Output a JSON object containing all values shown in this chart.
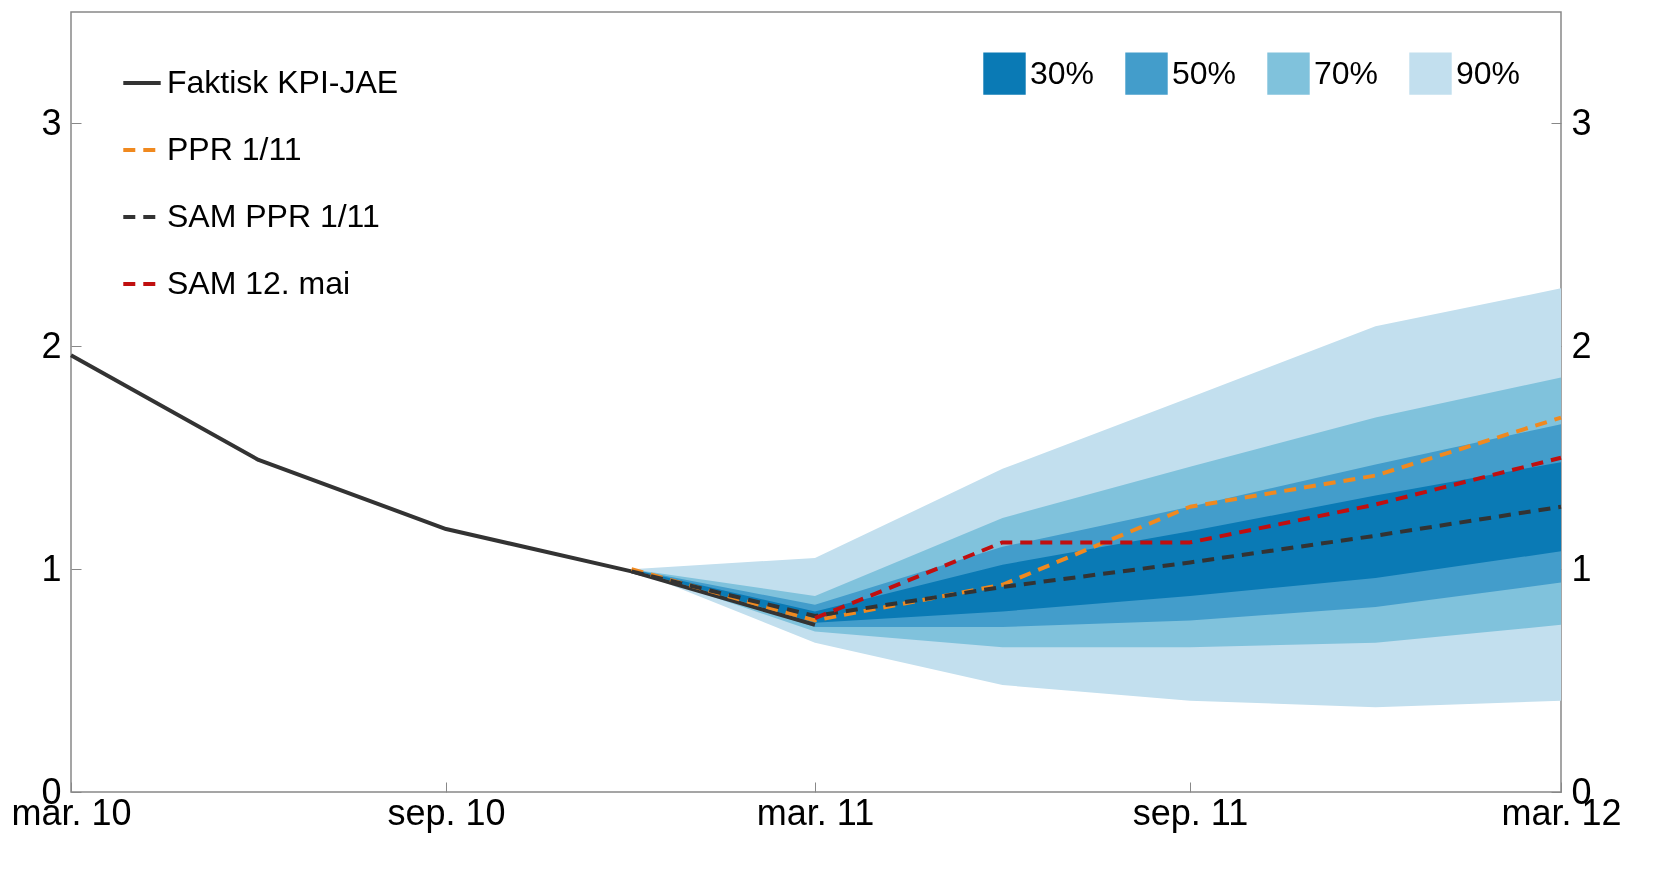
{
  "chart_data": {
    "type": "line",
    "xlim": [
      "2010-03",
      "2012-03"
    ],
    "xticks": [
      {
        "value": "2010-03",
        "label": "mar. 10"
      },
      {
        "value": "2010-09",
        "label": "sep. 10"
      },
      {
        "value": "2011-03",
        "label": "mar. 11"
      },
      {
        "value": "2011-09",
        "label": "sep. 11"
      },
      {
        "value": "2012-03",
        "label": "mar. 12"
      }
    ],
    "ylim": [
      0,
      3.5
    ],
    "yticks": [
      0,
      1,
      2,
      3
    ],
    "y2lim": [
      0,
      3.5
    ],
    "y2ticks": [
      0,
      1,
      2,
      3
    ],
    "grid": false,
    "legend": "top left",
    "series": [
      {
        "name": "30%",
        "type": "area",
        "color": "#0a7ab5",
        "x": [
          "2010-12",
          "2011-03",
          "2011-06",
          "2011-09",
          "2011-12",
          "2012-03"
        ],
        "values": [
          null,
          null,
          null,
          null,
          null,
          null
        ],
        "upper": [
          1.0,
          0.81,
          1.02,
          1.17,
          1.33,
          1.48
        ],
        "lower": [
          1.0,
          0.76,
          0.81,
          0.88,
          0.96,
          1.08
        ]
      },
      {
        "name": "50%",
        "type": "area",
        "color": "#439dcb",
        "x": [
          "2010-12",
          "2011-03",
          "2011-06",
          "2011-09",
          "2011-12",
          "2012-03"
        ],
        "values": [
          null,
          null,
          null,
          null,
          null,
          null
        ],
        "upper": [
          1.0,
          0.84,
          1.1,
          1.28,
          1.47,
          1.65
        ],
        "lower": [
          1.0,
          0.74,
          0.74,
          0.77,
          0.83,
          0.94
        ]
      },
      {
        "name": "70%",
        "type": "area",
        "color": "#80c2dc",
        "x": [
          "2010-12",
          "2011-03",
          "2011-06",
          "2011-09",
          "2011-12",
          "2012-03"
        ],
        "values": [
          null,
          null,
          null,
          null,
          null,
          null
        ],
        "upper": [
          1.0,
          0.88,
          1.23,
          1.46,
          1.68,
          1.86
        ],
        "lower": [
          1.0,
          0.72,
          0.65,
          0.65,
          0.67,
          0.75
        ]
      },
      {
        "name": "90%",
        "type": "area",
        "color": "#c2dfee",
        "x": [
          "2010-12",
          "2011-03",
          "2011-06",
          "2011-09",
          "2011-12",
          "2012-03"
        ],
        "values": [
          null,
          null,
          null,
          null,
          null,
          null
        ],
        "upper": [
          1.0,
          1.05,
          1.45,
          1.77,
          2.09,
          2.26
        ],
        "lower": [
          1.0,
          0.67,
          0.48,
          0.41,
          0.38,
          0.41
        ]
      },
      {
        "name": "Faktisk KPI-JAE",
        "type": "line",
        "line_style": "solid",
        "color": "#333333",
        "x": [
          "2010-03",
          "2010-06",
          "2010-09",
          "2010-12",
          "2011-03"
        ],
        "values": [
          1.96,
          1.49,
          1.18,
          0.99,
          0.75
        ]
      },
      {
        "name": "PPR 1/11",
        "type": "line",
        "line_style": "dashed",
        "color": "#f0891f",
        "x": [
          "2010-12",
          "2011-03",
          "2011-06",
          "2011-09",
          "2011-12",
          "2012-03"
        ],
        "values": [
          1.0,
          0.77,
          0.93,
          1.28,
          1.42,
          1.68
        ]
      },
      {
        "name": "SAM PPR 1/11",
        "type": "line",
        "line_style": "dashed",
        "color": "#333333",
        "x": [
          "2010-12",
          "2011-03",
          "2011-06",
          "2011-09",
          "2011-12",
          "2012-03"
        ],
        "values": [
          0.99,
          0.79,
          0.92,
          1.03,
          1.15,
          1.28
        ]
      },
      {
        "name": "SAM 12. mai",
        "type": "line",
        "line_style": "dashed",
        "color": "#c00f0f",
        "x": [
          "2011-03",
          "2011-06",
          "2011-09",
          "2011-12",
          "2012-03"
        ],
        "values": [
          0.78,
          1.12,
          1.12,
          1.29,
          1.5
        ]
      }
    ]
  }
}
